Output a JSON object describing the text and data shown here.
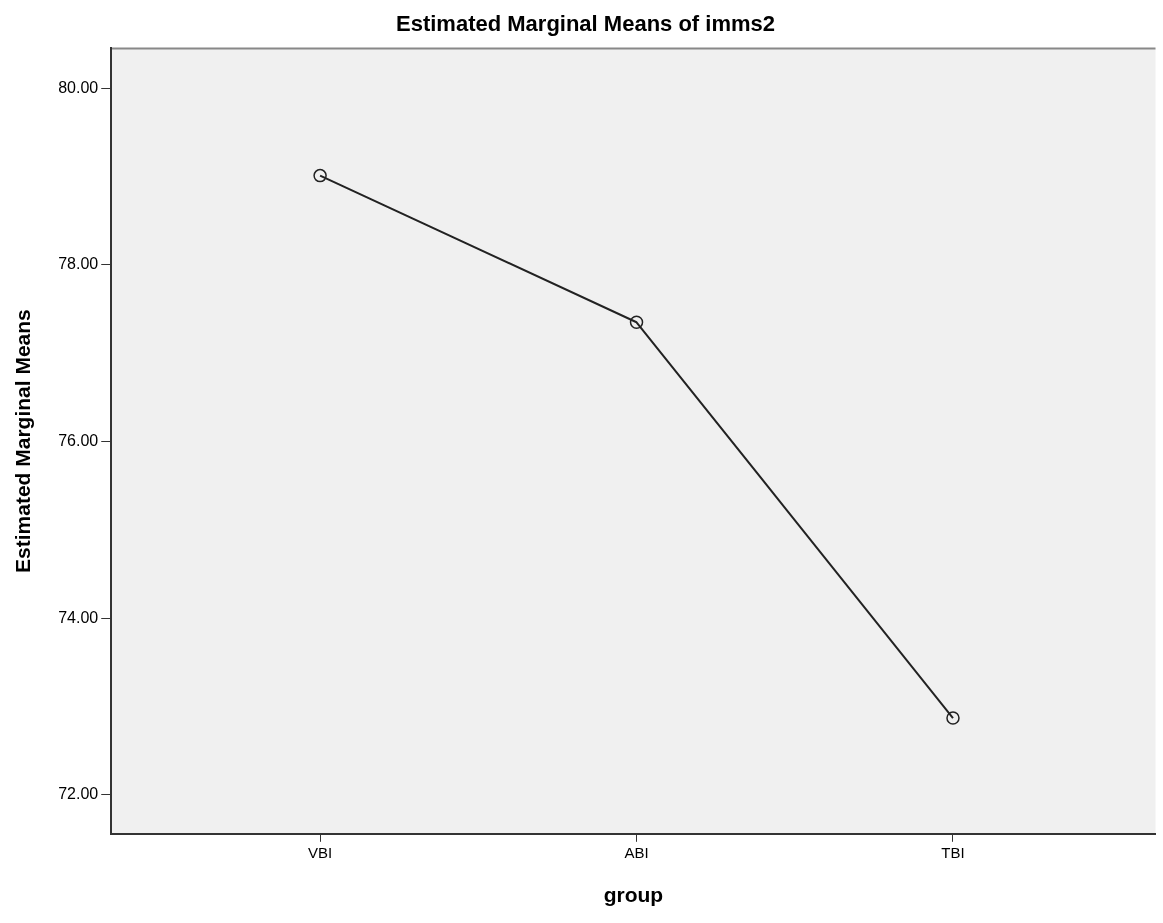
{
  "chart_data": {
    "type": "line",
    "title": "Estimated Marginal Means of imms2",
    "xlabel": "group",
    "ylabel": "Estimated Marginal Means",
    "categories": [
      "VBI",
      "ABI",
      "TBI"
    ],
    "series": [
      {
        "color": "#222222",
        "values": [
          79.01,
          77.35,
          72.87
        ]
      }
    ],
    "ylim": [
      71.56,
      80.45
    ],
    "yticks": [
      {
        "value": 72,
        "label": "72.00"
      },
      {
        "value": 74,
        "label": "74.00"
      },
      {
        "value": 76,
        "label": "76.00"
      },
      {
        "value": 78,
        "label": "78.00"
      },
      {
        "value": 80,
        "label": "80.00"
      }
    ],
    "grid": false,
    "legend": false,
    "marker": "circle",
    "line_style": "solid"
  }
}
